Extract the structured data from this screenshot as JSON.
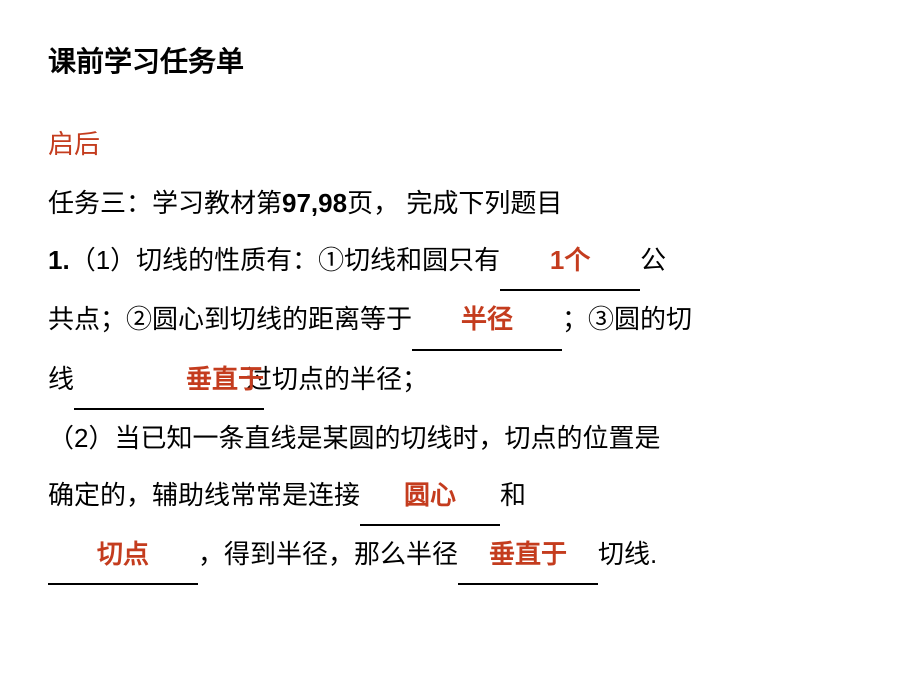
{
  "title": "课前学习任务单",
  "section_header": "启后",
  "line1_a": "任务三：学习教材第",
  "line1_b": "97,98",
  "line1_c": "页，  完成下列题目",
  "line2_a": "1.",
  "line2_b": "（1）切线的性质有：①切线和圆只有",
  "ans1": "1个",
  "line2_c": "公",
  "line3_a": "共点；②圆心到切线的距离等于",
  "ans2": "半径",
  "line3_b": "；③圆的切",
  "line4_a": "线",
  "ans3": "垂直于",
  "line4_overlay": "过切点的半径；",
  "line5_a": "（2）当已知一条直线是某圆的切线时，切点的位置是",
  "line6_a": "确定的，辅助线常常是连接",
  "ans4": "圆心",
  "line6_b": "和",
  "ans5": "切点",
  "line7_a": "，得到半径，那么半径",
  "ans6": "垂直于",
  "line7_b": "切线.",
  "colors": {
    "text": "#000000",
    "accent": "#c43c1e",
    "background": "#ffffff"
  },
  "fontsize": {
    "title": 28,
    "body": 26
  }
}
